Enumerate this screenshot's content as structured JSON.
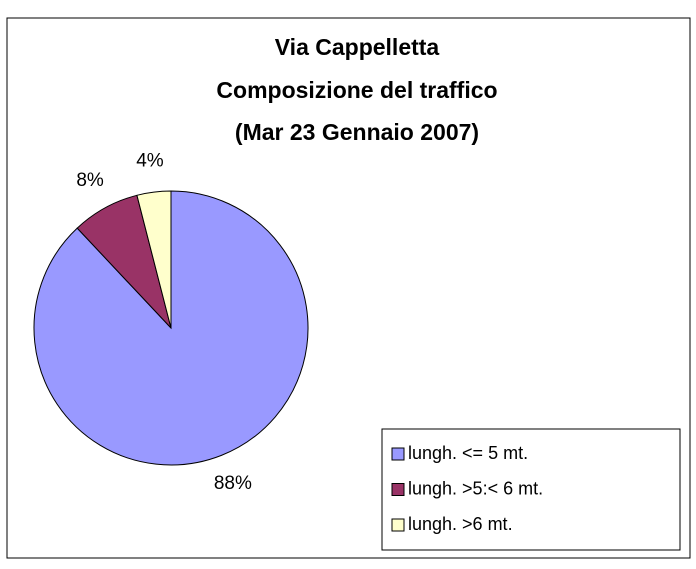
{
  "chart_data": {
    "type": "pie",
    "title": [
      "Via Cappelletta",
      "Composizione del traffico",
      "(Mar 23 Gennaio 2007)"
    ],
    "categories": [
      "lungh. <= 5 mt.",
      "lungh. >5:< 6 mt.",
      "lungh. >6 mt."
    ],
    "values": [
      88,
      8,
      4
    ],
    "value_labels": [
      "88%",
      "8%",
      "4%"
    ],
    "colors": [
      "#9999ff",
      "#993366",
      "#ffffcc"
    ],
    "legend": "bottom-right"
  }
}
